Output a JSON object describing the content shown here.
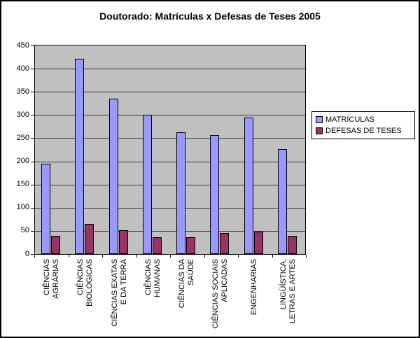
{
  "chart_data": {
    "type": "bar",
    "title": "Doutorado: Matrículas x Defesas de Teses 2005",
    "xlabel": "",
    "ylabel": "",
    "ylim": [
      0,
      450
    ],
    "ytick_step": 50,
    "yticks": [
      0,
      50,
      100,
      150,
      200,
      250,
      300,
      350,
      400,
      450
    ],
    "grid": true,
    "legend_position": "right",
    "plot_background": "#c0c0c0",
    "bar_border_color": "#000000",
    "categories": [
      "CIÊNCIAS AGRÁRIAS",
      "CIÊNCIAS BIOLÓGICAS",
      "CIÊNCIAS EXATAS E DA TERRA",
      "CIÊNCIAS HUMANAS",
      "CIÊNCIAS DA SAÚDE",
      "CIÊNCIAS SOCIAIS APLICADAS",
      "ENGENHARIAS",
      "LINGÜÍSTICA, LETRAS E ARTES"
    ],
    "category_label_lines": [
      [
        "CIÊNCIAS",
        "AGRÁRIAS"
      ],
      [
        "CIÊNCIAS",
        "BIOLÓGICAS"
      ],
      [
        "CIÊNCIAS EXATAS",
        "E DA TERRA"
      ],
      [
        "CIÊNCIAS",
        "HUMANAS"
      ],
      [
        "CIÊNCIAS DA",
        "SAÚDE"
      ],
      [
        "CIÊNCIAS SOCIAIS",
        "APLICADAS"
      ],
      [
        "ENGENHARIAS"
      ],
      [
        "LINGÜÍSTICA,",
        "LETRAS E ARTES"
      ]
    ],
    "series": [
      {
        "name": "MATRÍCULAS",
        "color": "#9999ff",
        "values": [
          195,
          422,
          335,
          301,
          262,
          257,
          294,
          227
        ]
      },
      {
        "name": "DEFESAS DE TESES",
        "color": "#993366",
        "values": [
          40,
          65,
          52,
          36,
          36,
          45,
          48,
          39
        ]
      }
    ]
  }
}
